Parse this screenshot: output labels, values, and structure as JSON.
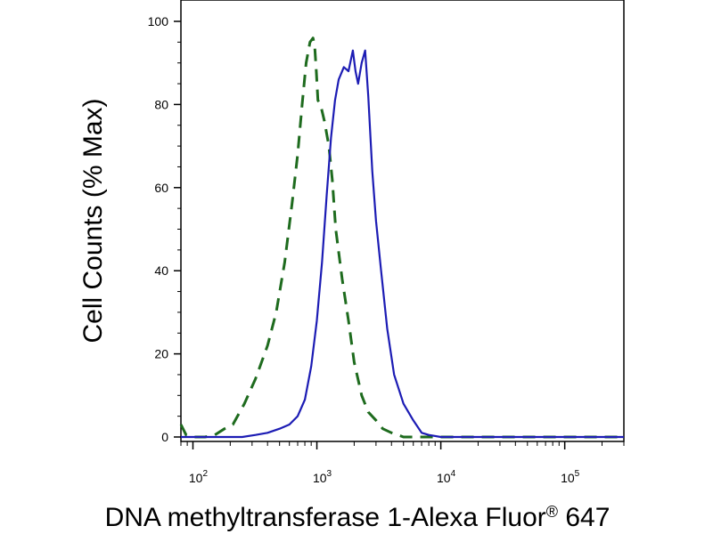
{
  "chart_data": {
    "type": "line",
    "title": "",
    "xlabel": "DNA methyltransferase 1-Alexa Fluor® 647",
    "ylabel": "Cell Counts (% Max)",
    "x_scale": "log",
    "xlim": [
      80,
      300000
    ],
    "ylim": [
      0,
      100
    ],
    "x_ticks": [
      {
        "value": 100,
        "base": "10",
        "exp": "2"
      },
      {
        "value": 1000,
        "base": "10",
        "exp": "3"
      },
      {
        "value": 10000,
        "base": "10",
        "exp": "4"
      },
      {
        "value": 100000,
        "base": "10",
        "exp": "5"
      }
    ],
    "y_ticks": [
      0,
      20,
      40,
      60,
      80,
      100
    ],
    "grid": false,
    "legend": "none",
    "series": [
      {
        "style": "dashed",
        "color": "#1e6b1e",
        "x": [
          80,
          88,
          100,
          125,
          150,
          180,
          210,
          260,
          320,
          400,
          470,
          550,
          630,
          700,
          760,
          820,
          880,
          930,
          960,
          990,
          1020,
          1070,
          1150,
          1250,
          1330,
          1420,
          1600,
          1800,
          2000,
          2300,
          2600,
          3000,
          3400,
          4000,
          4500,
          5000,
          5600,
          6300,
          7500,
          10000,
          20000,
          100000,
          300000
        ],
        "y": [
          3,
          0.5,
          0,
          0,
          0.5,
          2,
          3,
          8,
          14,
          22,
          30,
          42,
          56,
          68,
          80,
          90,
          95,
          96,
          94,
          88,
          81,
          80,
          76,
          70,
          62,
          50,
          38,
          28,
          18,
          10,
          6,
          4,
          2,
          1,
          0.5,
          0,
          0,
          0,
          0,
          0,
          0,
          0,
          0
        ]
      },
      {
        "style": "solid",
        "color": "#1c1cb4",
        "x": [
          80,
          150,
          250,
          320,
          400,
          500,
          600,
          700,
          800,
          900,
          1000,
          1100,
          1200,
          1300,
          1400,
          1500,
          1650,
          1800,
          1950,
          2050,
          2150,
          2300,
          2450,
          2600,
          2800,
          3000,
          3300,
          3700,
          4200,
          5000,
          6000,
          7000,
          8000,
          10000,
          30000,
          100000,
          300000
        ],
        "y": [
          0,
          0,
          0,
          0.5,
          1,
          2,
          3,
          5,
          9,
          17,
          28,
          42,
          58,
          72,
          81,
          86,
          89,
          88,
          93,
          88,
          85,
          90,
          93,
          82,
          64,
          52,
          40,
          26,
          15,
          8,
          4,
          1,
          0.5,
          0,
          0,
          0,
          0
        ]
      }
    ]
  }
}
